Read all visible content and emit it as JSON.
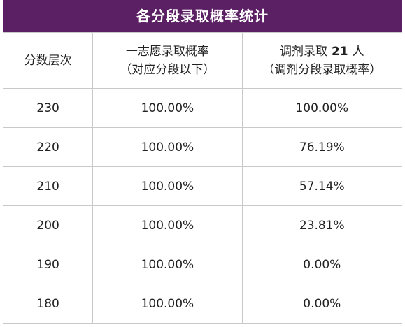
{
  "title": "各分段录取概率统计",
  "headers": {
    "col1": "分数层次",
    "col2_line1": "一志愿录取概率",
    "col2_line2": "（对应分段以下）",
    "col3_prefix": "调剂录取",
    "col3_count": "21",
    "col3_suffix": "人",
    "col3_line2": "（调剂分段录取概率）"
  },
  "rows": [
    {
      "score": "230",
      "first_choice": "100.00%",
      "adjust": "100.00%"
    },
    {
      "score": "220",
      "first_choice": "100.00%",
      "adjust": "76.19%"
    },
    {
      "score": "210",
      "first_choice": "100.00%",
      "adjust": "57.14%"
    },
    {
      "score": "200",
      "first_choice": "100.00%",
      "adjust": "23.81%"
    },
    {
      "score": "190",
      "first_choice": "100.00%",
      "adjust": "0.00%"
    },
    {
      "score": "180",
      "first_choice": "100.00%",
      "adjust": "0.00%"
    }
  ]
}
